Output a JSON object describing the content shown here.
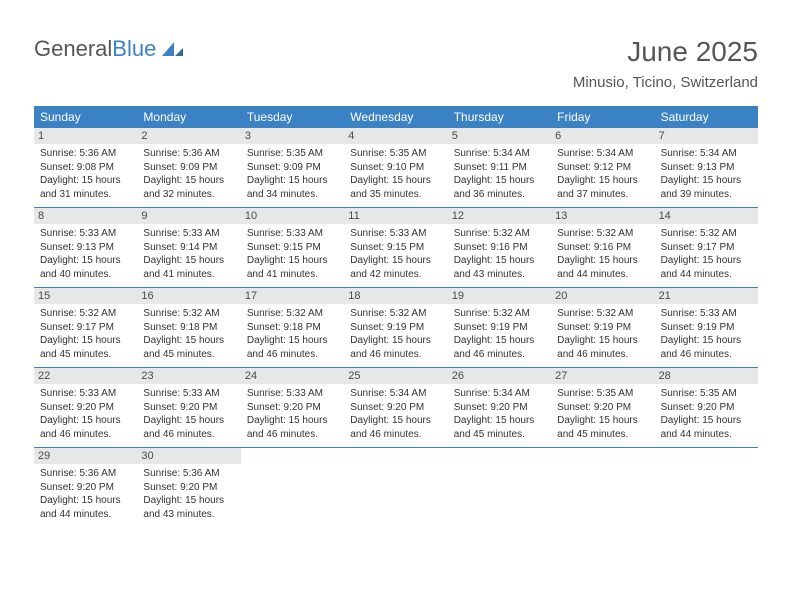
{
  "logo": {
    "text1": "General",
    "text2": "Blue"
  },
  "header": {
    "title": "June 2025",
    "location": "Minusio, Ticino, Switzerland"
  },
  "colors": {
    "accent": "#3b82c4",
    "daynum_bg": "#e7e7e7",
    "text_dark": "#565656",
    "body_text": "#333333",
    "background": "#ffffff"
  },
  "typography": {
    "title_fontsize": 28,
    "location_fontsize": 15,
    "dayhead_fontsize": 12,
    "daynum_fontsize": 11,
    "body_fontsize": 10
  },
  "dayheads": [
    "Sunday",
    "Monday",
    "Tuesday",
    "Wednesday",
    "Thursday",
    "Friday",
    "Saturday"
  ],
  "weeks": [
    [
      {
        "n": "1",
        "sr": "Sunrise: 5:36 AM",
        "ss": "Sunset: 9:08 PM",
        "d1": "Daylight: 15 hours",
        "d2": "and 31 minutes."
      },
      {
        "n": "2",
        "sr": "Sunrise: 5:36 AM",
        "ss": "Sunset: 9:09 PM",
        "d1": "Daylight: 15 hours",
        "d2": "and 32 minutes."
      },
      {
        "n": "3",
        "sr": "Sunrise: 5:35 AM",
        "ss": "Sunset: 9:09 PM",
        "d1": "Daylight: 15 hours",
        "d2": "and 34 minutes."
      },
      {
        "n": "4",
        "sr": "Sunrise: 5:35 AM",
        "ss": "Sunset: 9:10 PM",
        "d1": "Daylight: 15 hours",
        "d2": "and 35 minutes."
      },
      {
        "n": "5",
        "sr": "Sunrise: 5:34 AM",
        "ss": "Sunset: 9:11 PM",
        "d1": "Daylight: 15 hours",
        "d2": "and 36 minutes."
      },
      {
        "n": "6",
        "sr": "Sunrise: 5:34 AM",
        "ss": "Sunset: 9:12 PM",
        "d1": "Daylight: 15 hours",
        "d2": "and 37 minutes."
      },
      {
        "n": "7",
        "sr": "Sunrise: 5:34 AM",
        "ss": "Sunset: 9:13 PM",
        "d1": "Daylight: 15 hours",
        "d2": "and 39 minutes."
      }
    ],
    [
      {
        "n": "8",
        "sr": "Sunrise: 5:33 AM",
        "ss": "Sunset: 9:13 PM",
        "d1": "Daylight: 15 hours",
        "d2": "and 40 minutes."
      },
      {
        "n": "9",
        "sr": "Sunrise: 5:33 AM",
        "ss": "Sunset: 9:14 PM",
        "d1": "Daylight: 15 hours",
        "d2": "and 41 minutes."
      },
      {
        "n": "10",
        "sr": "Sunrise: 5:33 AM",
        "ss": "Sunset: 9:15 PM",
        "d1": "Daylight: 15 hours",
        "d2": "and 41 minutes."
      },
      {
        "n": "11",
        "sr": "Sunrise: 5:33 AM",
        "ss": "Sunset: 9:15 PM",
        "d1": "Daylight: 15 hours",
        "d2": "and 42 minutes."
      },
      {
        "n": "12",
        "sr": "Sunrise: 5:32 AM",
        "ss": "Sunset: 9:16 PM",
        "d1": "Daylight: 15 hours",
        "d2": "and 43 minutes."
      },
      {
        "n": "13",
        "sr": "Sunrise: 5:32 AM",
        "ss": "Sunset: 9:16 PM",
        "d1": "Daylight: 15 hours",
        "d2": "and 44 minutes."
      },
      {
        "n": "14",
        "sr": "Sunrise: 5:32 AM",
        "ss": "Sunset: 9:17 PM",
        "d1": "Daylight: 15 hours",
        "d2": "and 44 minutes."
      }
    ],
    [
      {
        "n": "15",
        "sr": "Sunrise: 5:32 AM",
        "ss": "Sunset: 9:17 PM",
        "d1": "Daylight: 15 hours",
        "d2": "and 45 minutes."
      },
      {
        "n": "16",
        "sr": "Sunrise: 5:32 AM",
        "ss": "Sunset: 9:18 PM",
        "d1": "Daylight: 15 hours",
        "d2": "and 45 minutes."
      },
      {
        "n": "17",
        "sr": "Sunrise: 5:32 AM",
        "ss": "Sunset: 9:18 PM",
        "d1": "Daylight: 15 hours",
        "d2": "and 46 minutes."
      },
      {
        "n": "18",
        "sr": "Sunrise: 5:32 AM",
        "ss": "Sunset: 9:19 PM",
        "d1": "Daylight: 15 hours",
        "d2": "and 46 minutes."
      },
      {
        "n": "19",
        "sr": "Sunrise: 5:32 AM",
        "ss": "Sunset: 9:19 PM",
        "d1": "Daylight: 15 hours",
        "d2": "and 46 minutes."
      },
      {
        "n": "20",
        "sr": "Sunrise: 5:32 AM",
        "ss": "Sunset: 9:19 PM",
        "d1": "Daylight: 15 hours",
        "d2": "and 46 minutes."
      },
      {
        "n": "21",
        "sr": "Sunrise: 5:33 AM",
        "ss": "Sunset: 9:19 PM",
        "d1": "Daylight: 15 hours",
        "d2": "and 46 minutes."
      }
    ],
    [
      {
        "n": "22",
        "sr": "Sunrise: 5:33 AM",
        "ss": "Sunset: 9:20 PM",
        "d1": "Daylight: 15 hours",
        "d2": "and 46 minutes."
      },
      {
        "n": "23",
        "sr": "Sunrise: 5:33 AM",
        "ss": "Sunset: 9:20 PM",
        "d1": "Daylight: 15 hours",
        "d2": "and 46 minutes."
      },
      {
        "n": "24",
        "sr": "Sunrise: 5:33 AM",
        "ss": "Sunset: 9:20 PM",
        "d1": "Daylight: 15 hours",
        "d2": "and 46 minutes."
      },
      {
        "n": "25",
        "sr": "Sunrise: 5:34 AM",
        "ss": "Sunset: 9:20 PM",
        "d1": "Daylight: 15 hours",
        "d2": "and 46 minutes."
      },
      {
        "n": "26",
        "sr": "Sunrise: 5:34 AM",
        "ss": "Sunset: 9:20 PM",
        "d1": "Daylight: 15 hours",
        "d2": "and 45 minutes."
      },
      {
        "n": "27",
        "sr": "Sunrise: 5:35 AM",
        "ss": "Sunset: 9:20 PM",
        "d1": "Daylight: 15 hours",
        "d2": "and 45 minutes."
      },
      {
        "n": "28",
        "sr": "Sunrise: 5:35 AM",
        "ss": "Sunset: 9:20 PM",
        "d1": "Daylight: 15 hours",
        "d2": "and 44 minutes."
      }
    ],
    [
      {
        "n": "29",
        "sr": "Sunrise: 5:36 AM",
        "ss": "Sunset: 9:20 PM",
        "d1": "Daylight: 15 hours",
        "d2": "and 44 minutes."
      },
      {
        "n": "30",
        "sr": "Sunrise: 5:36 AM",
        "ss": "Sunset: 9:20 PM",
        "d1": "Daylight: 15 hours",
        "d2": "and 43 minutes."
      },
      {
        "empty": true
      },
      {
        "empty": true
      },
      {
        "empty": true
      },
      {
        "empty": true
      },
      {
        "empty": true
      }
    ]
  ]
}
